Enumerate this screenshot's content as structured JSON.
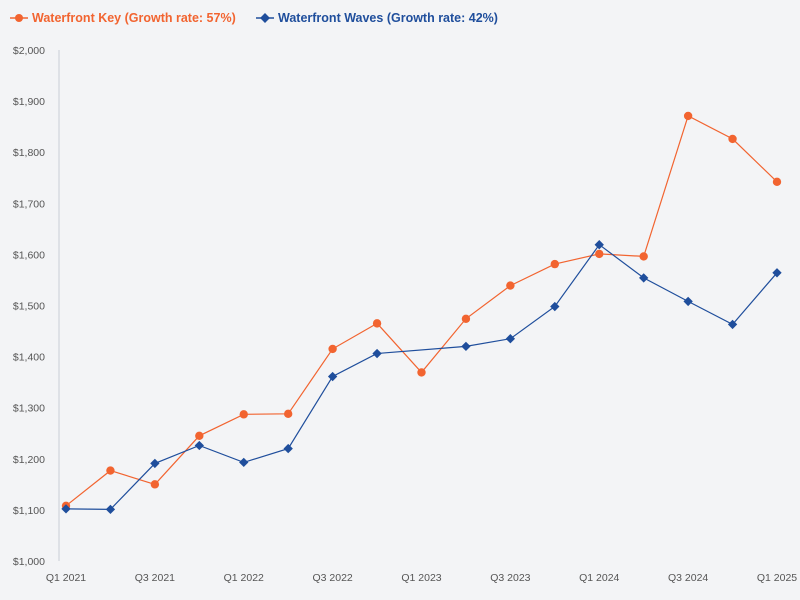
{
  "chart_data": {
    "type": "line",
    "title": "",
    "xlabel": "",
    "ylabel": "",
    "ylim": [
      1000,
      2000
    ],
    "yticks": [
      1000,
      1100,
      1200,
      1300,
      1400,
      1500,
      1600,
      1700,
      1800,
      1900,
      2000
    ],
    "ytick_labels": [
      "$1,000",
      "$1,100",
      "$1,200",
      "$1,300",
      "$1,400",
      "$1,500",
      "$1,600",
      "$1,700",
      "$1,800",
      "$1,900",
      "$2,000"
    ],
    "categories": [
      "Q1 2021",
      "Q2 2021",
      "Q3 2021",
      "Q4 2021",
      "Q1 2022",
      "Q2 2022",
      "Q3 2022",
      "Q4 2022",
      "Q1 2023",
      "Q2 2023",
      "Q3 2023",
      "Q4 2023",
      "Q1 2024",
      "Q2 2024",
      "Q3 2024",
      "Q4 2024",
      "Q1 2025"
    ],
    "xtick_labels": [
      "Q1 2021",
      "",
      "Q3 2021",
      "",
      "Q1 2022",
      "",
      "Q3 2022",
      "",
      "Q1 2023",
      "",
      "Q3 2023",
      "",
      "Q1 2024",
      "",
      "Q3 2024",
      "",
      "Q1 2025"
    ],
    "grid": false,
    "legend_position": "top-left",
    "series": [
      {
        "name": "Waterfront Key (Growth rate: 57%)",
        "color": "#f26430",
        "marker": "circle",
        "values": [
          1108,
          1177,
          1150,
          1245,
          1287,
          1288,
          1415,
          1465,
          1369,
          1474,
          1539,
          1581,
          1601,
          1596,
          1871,
          1826,
          1742
        ]
      },
      {
        "name": "Waterfront Waves (Growth rate: 42%)",
        "color": "#1f4e9c",
        "marker": "diamond",
        "values": [
          1102,
          1101,
          1191,
          1226,
          1193,
          1220,
          1361,
          1406,
          null,
          1420,
          1435,
          1498,
          1619,
          1554,
          1508,
          1463,
          1564
        ]
      }
    ]
  }
}
